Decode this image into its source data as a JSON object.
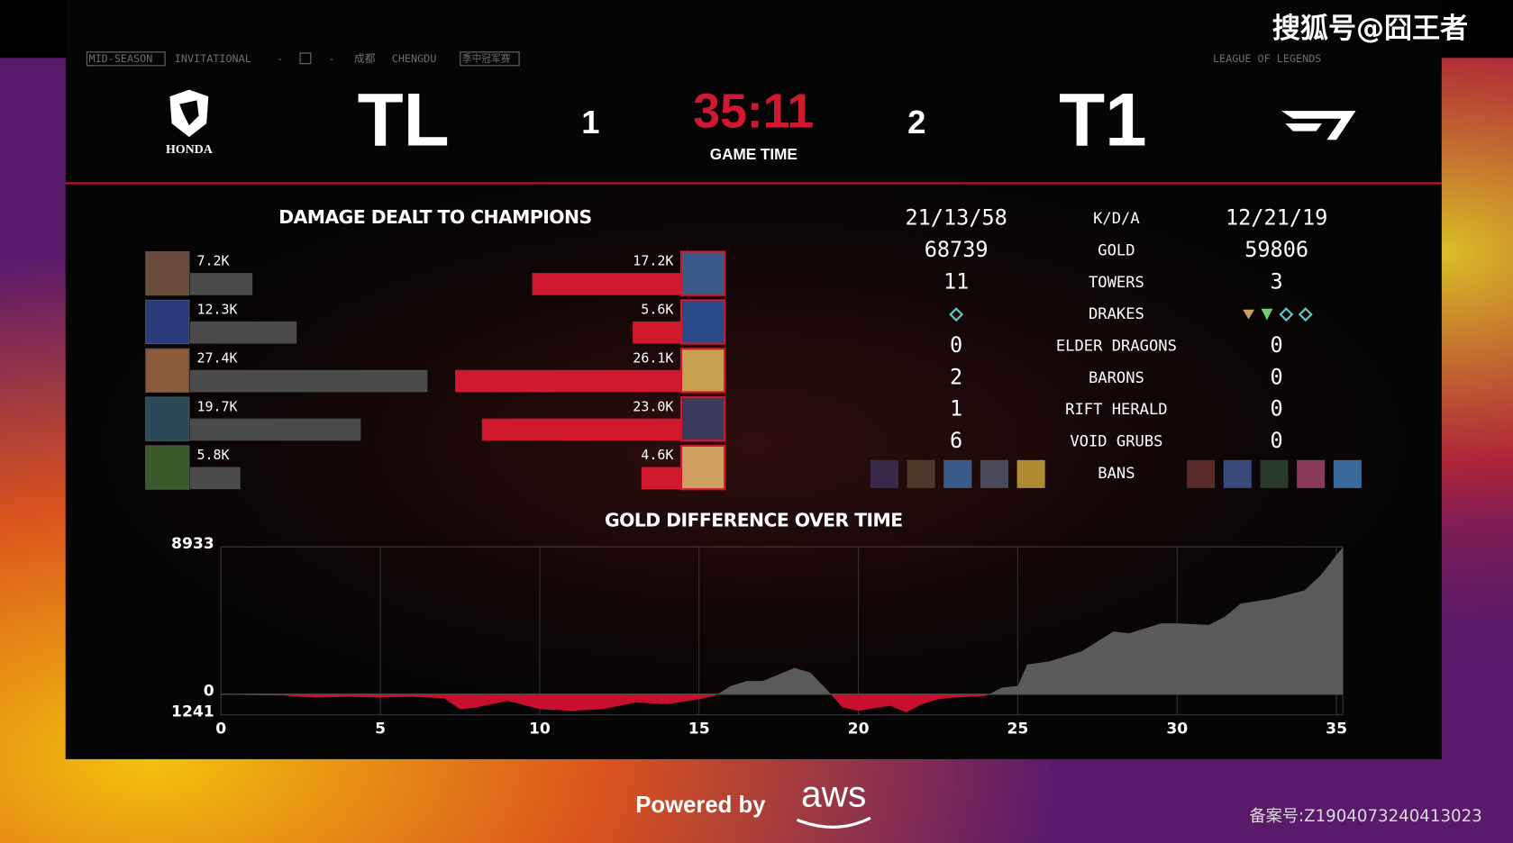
{
  "header": {
    "event": [
      "MID-SEASON",
      "INVITATIONAL",
      "成都",
      "CHENGDU",
      "季中冠军赛"
    ],
    "league": "LEAGUE OF LEGENDS",
    "watermark": "搜狐号@囧王者",
    "left_team": {
      "name": "TL",
      "sponsor": "HONDA",
      "score": 1
    },
    "right_team": {
      "name": "T1",
      "score": 2
    },
    "game_time": "35:11",
    "game_time_label": "GAME TIME"
  },
  "stats": {
    "rows": [
      {
        "label": "K/D/A",
        "left": "21/13/58",
        "right": "12/21/19"
      },
      {
        "label": "GOLD",
        "left": 68739,
        "right": 59806
      },
      {
        "label": "TOWERS",
        "left": 11,
        "right": 3
      },
      {
        "label": "DRAKES"
      },
      {
        "label": "ELDER DRAGONS",
        "left": 0,
        "right": 0
      },
      {
        "label": "BARONS",
        "left": 2,
        "right": 0
      },
      {
        "label": "RIFT HERALD",
        "left": 1,
        "right": 0
      },
      {
        "label": "VOID GRUBS",
        "left": 6,
        "right": 0
      }
    ],
    "bans_label": "BANS"
  },
  "chart_data": [
    {
      "type": "hbar",
      "title": "DAMAGE DEALT TO CHAMPIONS",
      "series": [
        {
          "color": "#4b4b4b",
          "values": [
            7200,
            12300,
            27400,
            19700,
            5800
          ],
          "value_labels": [
            "7.2K",
            "12.3K",
            "27.4K",
            "19.7K",
            "5.8K"
          ]
        },
        {
          "color": "#d0182f",
          "values": [
            17200,
            5600,
            26100,
            23000,
            4600
          ],
          "value_labels": [
            "17.2K",
            "5.6K",
            "26.1K",
            "23.0K",
            "4.6K"
          ]
        }
      ]
    },
    {
      "type": "area",
      "title": "GOLD DIFFERENCE OVER TIME",
      "x": [
        0,
        1,
        2,
        2.5,
        3,
        4,
        5,
        6,
        7,
        7.5,
        8,
        9,
        10,
        11,
        12,
        13,
        14,
        15,
        15.5,
        16,
        16.5,
        17,
        17.5,
        18,
        18.5,
        19,
        19.5,
        20,
        21,
        21.5,
        22,
        22.5,
        23,
        24,
        24.5,
        25,
        25.3,
        26,
        27,
        28,
        28.5,
        29,
        29.5,
        30,
        31,
        31.5,
        32,
        33,
        34,
        34.5,
        35.2
      ],
      "values": [
        0,
        -50,
        -80,
        -150,
        -200,
        -150,
        -200,
        -150,
        -250,
        -900,
        -800,
        -400,
        -900,
        -1000,
        -900,
        -500,
        -600,
        -300,
        -100,
        500,
        800,
        800,
        1200,
        1600,
        1300,
        300,
        -800,
        -1000,
        -700,
        -1100,
        -600,
        -300,
        -200,
        -100,
        400,
        500,
        1800,
        2000,
        2600,
        3800,
        3700,
        4000,
        4300,
        4300,
        4200,
        4700,
        5500,
        5800,
        6300,
        7200,
        8933
      ],
      "positive_color": "#5a5a5a",
      "negative_color": "#c8102e",
      "xlim": [
        0,
        35.2
      ],
      "xticks": [
        0,
        5,
        10,
        15,
        20,
        25,
        30,
        35
      ],
      "ylim": [
        -1241,
        8933
      ],
      "yticks": [
        8933,
        0,
        {
          "value": -1241,
          "label": "1241"
        }
      ],
      "grid": true
    }
  ],
  "footer": {
    "powered_by": "Powered by",
    "aws": "aws",
    "record": "备案号:Z1904073240413023"
  }
}
